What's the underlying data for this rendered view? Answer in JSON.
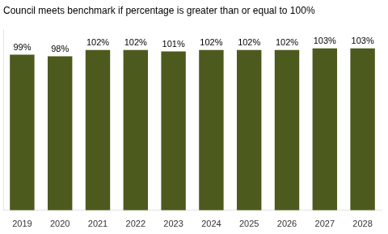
{
  "chart_data": {
    "type": "bar",
    "title": "Council meets benchmark if percentage is greater than or equal to 100%",
    "categories": [
      "2019",
      "2020",
      "2021",
      "2022",
      "2023",
      "2024",
      "2025",
      "2026",
      "2027",
      "2028"
    ],
    "values": [
      99,
      98,
      102,
      102,
      101,
      102,
      102,
      102,
      103,
      103
    ],
    "value_labels": [
      "99%",
      "98%",
      "102%",
      "102%",
      "101%",
      "102%",
      "102%",
      "102%",
      "103%",
      "103%"
    ],
    "color": "#4d5a1e",
    "ylim": [
      0,
      115
    ],
    "grid": false,
    "data_labels": true,
    "tick_labels": "x"
  }
}
